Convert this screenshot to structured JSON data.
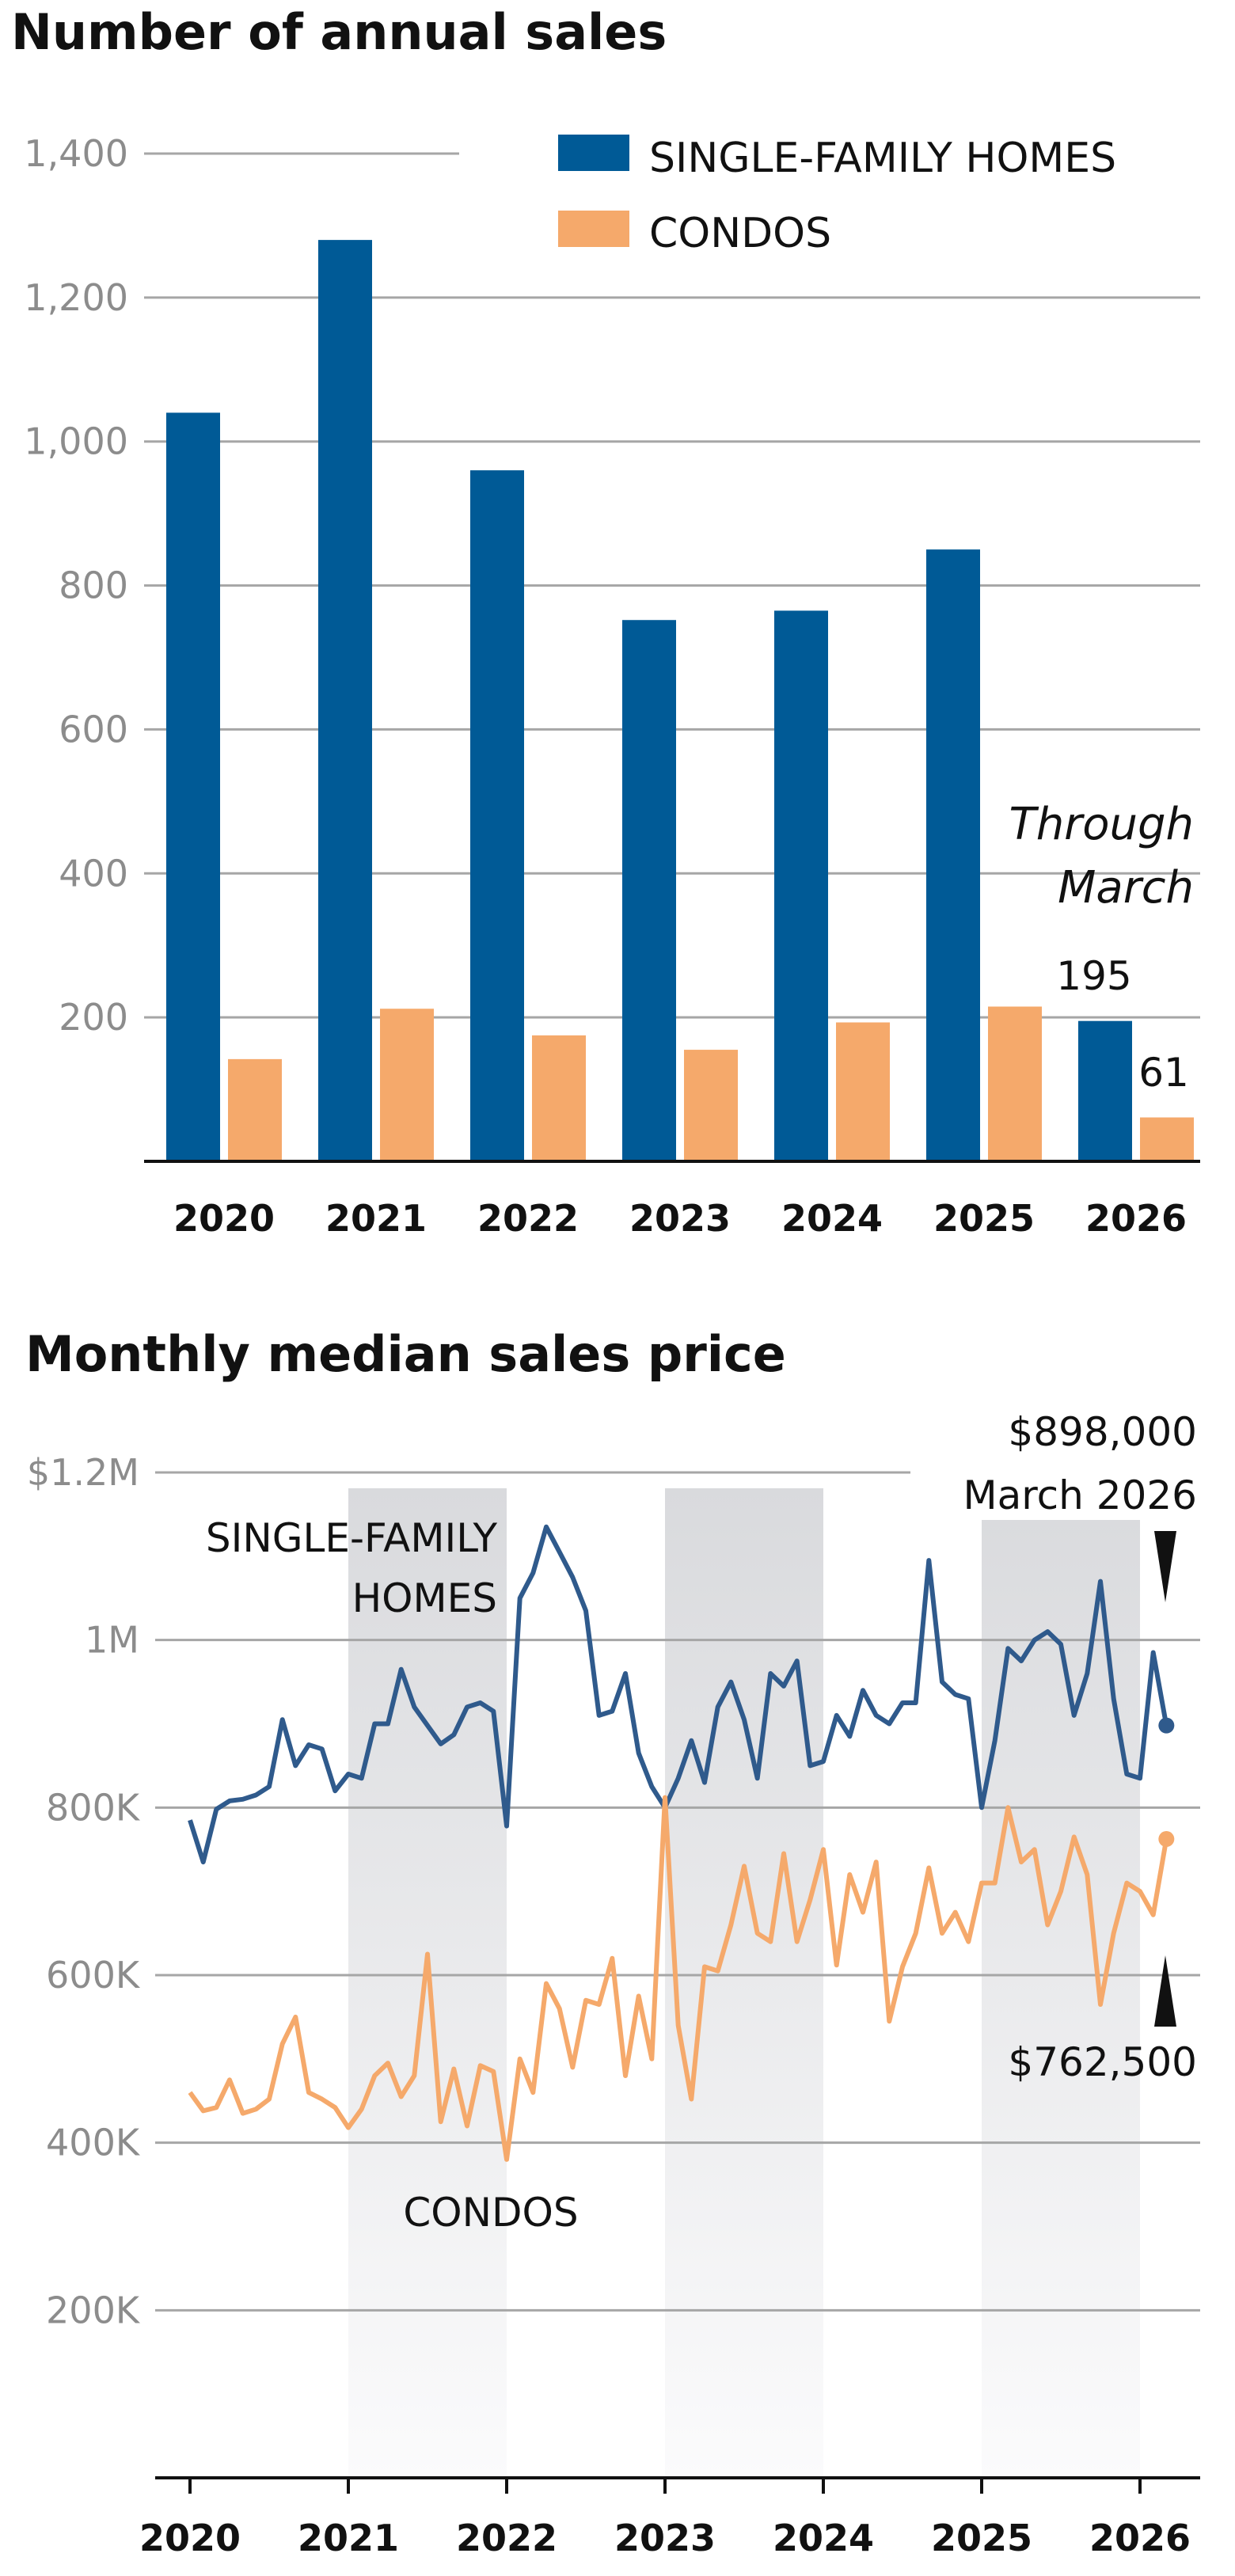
{
  "chart_data": [
    {
      "type": "bar",
      "title": "Number of annual sales",
      "categories": [
        "2020",
        "2021",
        "2022",
        "2023",
        "2024",
        "2025",
        "2026"
      ],
      "y_ticks": [
        "1,400",
        "1,200",
        "1,000",
        "800",
        "600",
        "400",
        "200"
      ],
      "ylim": [
        0,
        1400
      ],
      "grid": true,
      "legend_placement": "top-right",
      "series": [
        {
          "name": "SINGLE-FAMILY HOMES",
          "color": "#005a96",
          "values": [
            1040,
            1280,
            960,
            752,
            765,
            850,
            195
          ]
        },
        {
          "name": "CONDOS",
          "color": "#f5a96b",
          "values": [
            142,
            212,
            175,
            155,
            193,
            215,
            61
          ]
        }
      ],
      "annotations": {
        "note_line1": "Through",
        "note_line2": "March",
        "single_family_2026": "195",
        "condos_2026": "61"
      }
    },
    {
      "type": "line",
      "title": "Monthly median sales price",
      "x_ticks": [
        "2020",
        "2021",
        "2022",
        "2023",
        "2024",
        "2025",
        "2026"
      ],
      "y_ticks": [
        "$1.2M",
        "1M",
        "800K",
        "600K",
        "400K",
        "200K"
      ],
      "ylim": [
        0,
        1200000
      ],
      "grid": true,
      "shaded_years": [
        "2021",
        "2023",
        "2025"
      ],
      "series": [
        {
          "name_line1": "SINGLE-FAMILY",
          "name_line2": "HOMES",
          "color": "#2f5a8c",
          "values": [
            785000,
            735000,
            798000,
            808000,
            810000,
            815000,
            825000,
            905000,
            850000,
            875000,
            870000,
            820000,
            840000,
            835000,
            900000,
            900000,
            965000,
            920000,
            898000,
            876000,
            887000,
            920000,
            925000,
            915000,
            778000,
            1050000,
            1080000,
            1135000,
            1105000,
            1075000,
            1035000,
            910000,
            915000,
            960000,
            865000,
            825000,
            800000,
            835000,
            880000,
            830000,
            920000,
            950000,
            905000,
            835000,
            960000,
            945000,
            975000,
            850000,
            855000,
            910000,
            885000,
            940000,
            910000,
            900000,
            925000,
            925000,
            1095000,
            950000,
            935000,
            930000,
            800000,
            880000,
            990000,
            975000,
            1000000,
            1010000,
            995000,
            910000,
            960000,
            1070000,
            930000,
            840000,
            835000,
            985000,
            898000
          ]
        },
        {
          "name": "CONDOS",
          "color": "#f5a96b",
          "values": [
            460000,
            438000,
            442000,
            475000,
            435000,
            440000,
            452000,
            518000,
            550000,
            460000,
            452000,
            442000,
            418000,
            440000,
            480000,
            495000,
            455000,
            480000,
            625000,
            425000,
            488000,
            420000,
            492000,
            485000,
            380000,
            500000,
            460000,
            590000,
            560000,
            490000,
            570000,
            565000,
            620000,
            480000,
            575000,
            500000,
            812000,
            540000,
            452000,
            610000,
            605000,
            660000,
            730000,
            650000,
            640000,
            745000,
            640000,
            690000,
            750000,
            612000,
            720000,
            675000,
            735000,
            545000,
            610000,
            650000,
            728000,
            650000,
            675000,
            640000,
            710000,
            710000,
            800000,
            735000,
            750000,
            660000,
            700000,
            765000,
            720000,
            565000,
            650000,
            710000,
            700000,
            672000,
            762500
          ]
        }
      ],
      "annotations": {
        "single_family_last_value": "$898,000",
        "single_family_last_date": "March 2026",
        "condos_last_value": "$762,500"
      }
    }
  ]
}
